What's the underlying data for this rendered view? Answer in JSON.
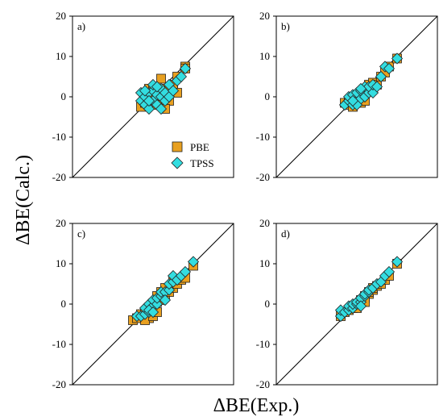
{
  "figure": {
    "ylabel": "ΔBE(Calc.)",
    "xlabel": "ΔBE(Exp.)"
  },
  "colors": {
    "pbe_fill": "#E8A020",
    "tpss_fill": "#33DDE0",
    "marker_stroke": "#222222",
    "axis": "#000000"
  },
  "chart_data": [
    {
      "type": "scatter",
      "panel_label": "a)",
      "xlim": [
        -20,
        20
      ],
      "ylim": [
        -20,
        20
      ],
      "yticks": [
        -20,
        -10,
        0,
        10,
        20
      ],
      "xticks": [],
      "diagonal": true,
      "legend": {
        "show": true,
        "placement": "lower-right"
      },
      "series": [
        {
          "name": "PBE",
          "marker": "square",
          "points": [
            [
              -3,
              -2.5
            ],
            [
              -2,
              -1.5
            ],
            [
              -1,
              -1
            ],
            [
              -1,
              0
            ],
            [
              0,
              -0.5
            ],
            [
              0,
              0.5
            ],
            [
              1,
              0
            ],
            [
              1,
              1.5
            ],
            [
              2,
              -1
            ],
            [
              2,
              1
            ],
            [
              2,
              4.5
            ],
            [
              3,
              0
            ],
            [
              3,
              2
            ],
            [
              4,
              2
            ],
            [
              4,
              -1
            ],
            [
              5,
              2
            ],
            [
              5,
              3
            ],
            [
              6,
              1
            ],
            [
              6,
              5
            ],
            [
              8,
              7.5
            ],
            [
              8,
              7
            ],
            [
              -1,
              2
            ],
            [
              1,
              -2
            ],
            [
              3,
              -3
            ],
            [
              0,
              2
            ]
          ]
        },
        {
          "name": "TPSS",
          "marker": "diamond",
          "points": [
            [
              -3,
              -1
            ],
            [
              -3,
              1
            ],
            [
              -2,
              -2
            ],
            [
              -2,
              0
            ],
            [
              -1,
              -3
            ],
            [
              -1,
              1
            ],
            [
              0,
              -1
            ],
            [
              0,
              1.5
            ],
            [
              1,
              -2
            ],
            [
              1,
              0.5
            ],
            [
              2,
              0
            ],
            [
              2,
              2
            ],
            [
              3,
              -1
            ],
            [
              3,
              1
            ],
            [
              4,
              0
            ],
            [
              4,
              3
            ],
            [
              5,
              1.5
            ],
            [
              6,
              4
            ],
            [
              7,
              5
            ],
            [
              8,
              7
            ],
            [
              -1,
              -1
            ],
            [
              0,
              3
            ],
            [
              2,
              -3
            ],
            [
              1,
              2.5
            ],
            [
              -2,
              1.5
            ]
          ]
        }
      ]
    },
    {
      "type": "scatter",
      "panel_label": "b)",
      "xlim": [
        -20,
        20
      ],
      "ylim": [
        -20,
        20
      ],
      "yticks": [
        -20,
        -10,
        0,
        10,
        20
      ],
      "xticks": [],
      "diagonal": true,
      "legend": {
        "show": false
      },
      "series": [
        {
          "name": "PBE",
          "marker": "square",
          "points": [
            [
              -3,
              -1.5
            ],
            [
              -2,
              -1
            ],
            [
              -2,
              -2
            ],
            [
              -1,
              -1
            ],
            [
              -1,
              0
            ],
            [
              0,
              -0.5
            ],
            [
              0,
              0.5
            ],
            [
              1,
              0
            ],
            [
              1,
              1
            ],
            [
              2,
              1
            ],
            [
              2,
              2
            ],
            [
              3,
              1.5
            ],
            [
              3,
              3
            ],
            [
              4,
              2
            ],
            [
              4,
              3.5
            ],
            [
              5,
              3
            ],
            [
              6,
              5
            ],
            [
              7,
              6
            ],
            [
              8,
              7.5
            ],
            [
              10,
              9.5
            ],
            [
              -1,
              -2.5
            ],
            [
              1,
              -1.5
            ],
            [
              2,
              -1
            ]
          ]
        },
        {
          "name": "TPSS",
          "marker": "diamond",
          "points": [
            [
              -3,
              -2
            ],
            [
              -2,
              -1
            ],
            [
              -2,
              0
            ],
            [
              -1,
              -2
            ],
            [
              -1,
              0.5
            ],
            [
              0,
              -1
            ],
            [
              0,
              1
            ],
            [
              1,
              -0.5
            ],
            [
              1,
              1.5
            ],
            [
              2,
              0
            ],
            [
              2,
              2.5
            ],
            [
              3,
              1
            ],
            [
              3,
              2.5
            ],
            [
              4,
              1
            ],
            [
              4,
              3
            ],
            [
              5,
              2.5
            ],
            [
              6,
              5
            ],
            [
              7,
              7.5
            ],
            [
              8,
              7
            ],
            [
              10,
              9.5
            ],
            [
              0,
              -2
            ],
            [
              -1,
              -1
            ],
            [
              1,
              2
            ]
          ]
        }
      ]
    },
    {
      "type": "scatter",
      "panel_label": "c)",
      "xlim": [
        -20,
        20
      ],
      "ylim": [
        -20,
        20
      ],
      "yticks": [
        -20,
        -10,
        0,
        10,
        20
      ],
      "xticks": [],
      "diagonal": true,
      "legend": {
        "show": false
      },
      "series": [
        {
          "name": "PBE",
          "marker": "square",
          "points": [
            [
              -5,
              -4
            ],
            [
              -4,
              -3.5
            ],
            [
              -3,
              -2.5
            ],
            [
              -2,
              -2
            ],
            [
              -1,
              -1
            ],
            [
              -1,
              -3.5
            ],
            [
              0,
              -1
            ],
            [
              0,
              0
            ],
            [
              1,
              0.5
            ],
            [
              1,
              2
            ],
            [
              2,
              1
            ],
            [
              2,
              3
            ],
            [
              3,
              2
            ],
            [
              3,
              4
            ],
            [
              4,
              3
            ],
            [
              5,
              4
            ],
            [
              5,
              6
            ],
            [
              6,
              5
            ],
            [
              7,
              6
            ],
            [
              8,
              6.5
            ],
            [
              10,
              9.5
            ],
            [
              -2,
              -4
            ],
            [
              0,
              -3
            ],
            [
              1,
              -2
            ]
          ]
        },
        {
          "name": "TPSS",
          "marker": "diamond",
          "points": [
            [
              -4,
              -3
            ],
            [
              -3,
              -3
            ],
            [
              -2,
              -2.5
            ],
            [
              -2,
              -1
            ],
            [
              -1,
              -2
            ],
            [
              -1,
              0
            ],
            [
              0,
              -0.5
            ],
            [
              0,
              1
            ],
            [
              1,
              0
            ],
            [
              1,
              1.5
            ],
            [
              2,
              2
            ],
            [
              2,
              3
            ],
            [
              3,
              3
            ],
            [
              4,
              3.5
            ],
            [
              4,
              5
            ],
            [
              5,
              5.5
            ],
            [
              5,
              7
            ],
            [
              6,
              6
            ],
            [
              7,
              7
            ],
            [
              8,
              8
            ],
            [
              10,
              10.5
            ],
            [
              -1,
              -1.5
            ],
            [
              0,
              -2
            ],
            [
              3,
              1
            ]
          ]
        }
      ]
    },
    {
      "type": "scatter",
      "panel_label": "d)",
      "xlim": [
        -20,
        20
      ],
      "ylim": [
        -20,
        20
      ],
      "yticks": [
        -20,
        -10,
        0,
        10,
        20
      ],
      "xticks": [],
      "diagonal": true,
      "legend": {
        "show": false
      },
      "series": [
        {
          "name": "PBE",
          "marker": "square",
          "points": [
            [
              -4,
              -3
            ],
            [
              -3,
              -2
            ],
            [
              -2,
              -1.5
            ],
            [
              -1,
              -1
            ],
            [
              -1,
              -0.5
            ],
            [
              0,
              -0.5
            ],
            [
              0,
              0
            ],
            [
              1,
              0.5
            ],
            [
              1,
              1
            ],
            [
              2,
              1.5
            ],
            [
              2,
              2
            ],
            [
              3,
              2.5
            ],
            [
              3,
              3
            ],
            [
              4,
              3.5
            ],
            [
              4,
              4
            ],
            [
              5,
              4.5
            ],
            [
              6,
              5
            ],
            [
              7,
              6
            ],
            [
              8,
              7
            ],
            [
              10,
              10
            ],
            [
              0,
              -1
            ],
            [
              2,
              0.5
            ]
          ]
        },
        {
          "name": "TPSS",
          "marker": "diamond",
          "points": [
            [
              -4,
              -3
            ],
            [
              -4,
              -1.5
            ],
            [
              -3,
              -2
            ],
            [
              -2,
              -1.5
            ],
            [
              -2,
              -0.5
            ],
            [
              -1,
              -1
            ],
            [
              -1,
              0
            ],
            [
              0,
              0
            ],
            [
              0,
              0.5
            ],
            [
              1,
              0.5
            ],
            [
              1,
              1.5
            ],
            [
              2,
              2
            ],
            [
              2,
              2.5
            ],
            [
              3,
              3
            ],
            [
              3,
              3.5
            ],
            [
              4,
              4
            ],
            [
              5,
              5
            ],
            [
              6,
              5.5
            ],
            [
              7,
              7
            ],
            [
              8,
              8
            ],
            [
              10,
              10.5
            ],
            [
              1,
              -0.5
            ]
          ]
        }
      ]
    }
  ]
}
